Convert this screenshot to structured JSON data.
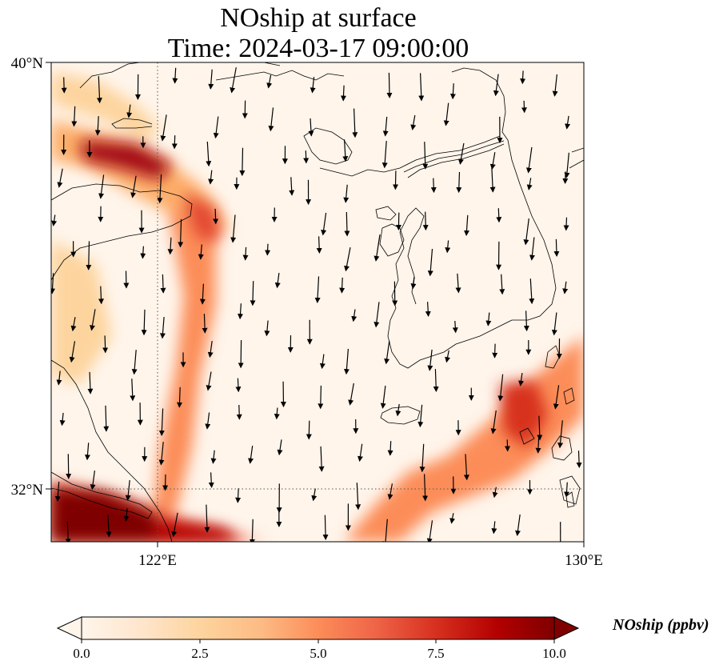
{
  "title": {
    "line1": "NOship at surface",
    "line2": "Time: 2024-03-17 09:00:00"
  },
  "map": {
    "lat_range": [
      31,
      40
    ],
    "lon_range": [
      120,
      130
    ],
    "lat_ticks": [
      {
        "value": 40,
        "label": "40°N"
      },
      {
        "value": 32,
        "label": "32°N"
      }
    ],
    "lon_ticks": [
      {
        "value": 122,
        "label": "122°E"
      },
      {
        "value": 130,
        "label": "130°E"
      }
    ],
    "gridlines": {
      "lat": [
        32
      ],
      "lon": [
        122
      ],
      "style": "dotted"
    },
    "field": "NOship concentration, ship-lane emission plumes",
    "vectors": "wind arrows, mostly pointing south / south-southeast"
  },
  "colorbar": {
    "label": "NOship (ppbv)",
    "range": [
      0,
      10
    ],
    "extend": "both",
    "ticks": [
      "0.0",
      "2.5",
      "5.0",
      "7.5",
      "10.0"
    ],
    "colors": {
      "low": "#fff5eb",
      "mid": "#fdae6b",
      "high": "#7f0000"
    }
  }
}
